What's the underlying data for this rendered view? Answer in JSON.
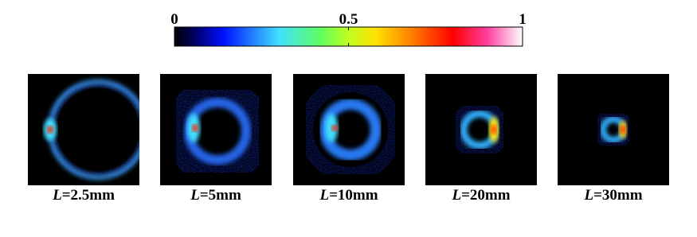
{
  "colorbar": {
    "lim": [
      0,
      1
    ],
    "ticks": [
      0,
      0.5,
      1
    ]
  },
  "panels": [
    {
      "symbol": "L",
      "text": "=2.5mm"
    },
    {
      "symbol": "L",
      "text": "=5mm"
    },
    {
      "symbol": "L",
      "text": "=10mm"
    },
    {
      "symbol": "L",
      "text": "=20mm"
    },
    {
      "symbol": "L",
      "text": "=30mm"
    }
  ]
}
